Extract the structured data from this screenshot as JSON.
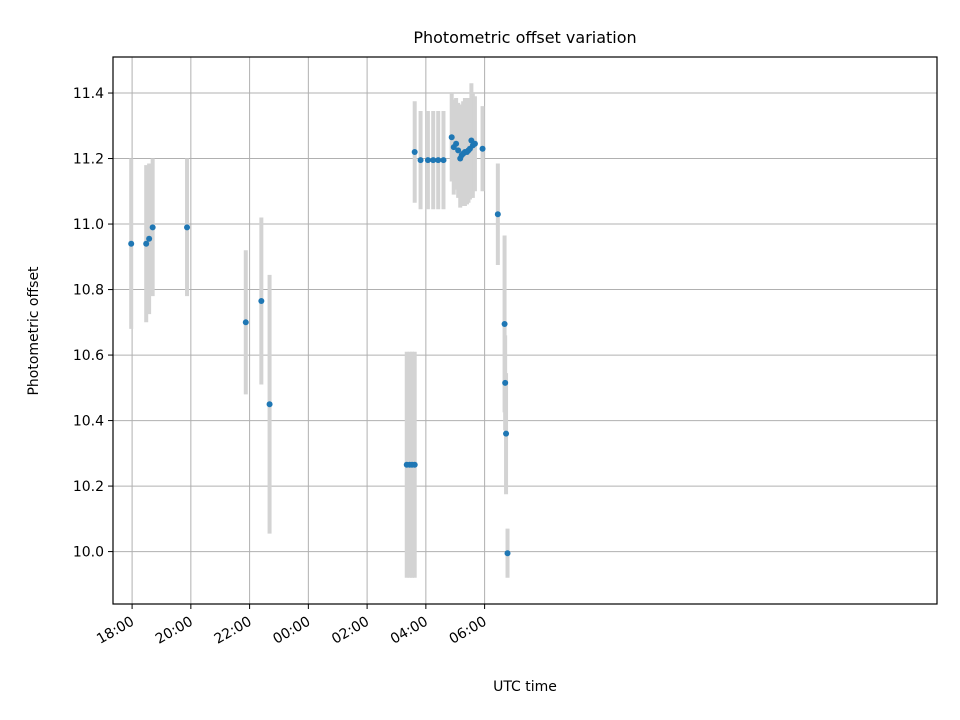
{
  "chart_data": {
    "type": "scatter",
    "title": "Photometric offset variation",
    "xlabel": "UTC time",
    "ylabel": "Photometric offset",
    "x_unit": "hours since 18:00 UTC (day 1)",
    "xlim": [
      -0.65,
      27.4
    ],
    "ylim": [
      9.84,
      11.51
    ],
    "grid": true,
    "x_ticks": [
      {
        "value": 0,
        "label": "18:00"
      },
      {
        "value": 2,
        "label": "20:00"
      },
      {
        "value": 4,
        "label": "22:00"
      },
      {
        "value": 6,
        "label": "00:00"
      },
      {
        "value": 8,
        "label": "02:00"
      },
      {
        "value": 10,
        "label": "04:00"
      },
      {
        "value": 12,
        "label": "06:00"
      }
    ],
    "y_ticks": [
      {
        "value": 10.0,
        "label": "10.0"
      },
      {
        "value": 10.2,
        "label": "10.2"
      },
      {
        "value": 10.4,
        "label": "10.4"
      },
      {
        "value": 10.6,
        "label": "10.6"
      },
      {
        "value": 10.8,
        "label": "10.8"
      },
      {
        "value": 11.0,
        "label": "11.0"
      },
      {
        "value": 11.2,
        "label": "11.2"
      },
      {
        "value": 11.4,
        "label": "11.4"
      }
    ],
    "colors": {
      "point": "#1f77b4",
      "errorbar": "#d3d3d3",
      "grid": "#b0b0b0"
    },
    "points": [
      {
        "x": -0.03,
        "y": 10.94,
        "err": 0.26
      },
      {
        "x": 0.48,
        "y": 10.94,
        "err": 0.24
      },
      {
        "x": 0.58,
        "y": 10.955,
        "err": 0.23
      },
      {
        "x": 0.7,
        "y": 10.99,
        "err": 0.21
      },
      {
        "x": 1.87,
        "y": 10.99,
        "err": 0.21
      },
      {
        "x": 3.87,
        "y": 10.7,
        "err": 0.22
      },
      {
        "x": 4.4,
        "y": 10.765,
        "err": 0.255
      },
      {
        "x": 4.68,
        "y": 10.45,
        "err": 0.395
      },
      {
        "x": 9.35,
        "y": 10.265,
        "err": 0.345
      },
      {
        "x": 9.45,
        "y": 10.265,
        "err": 0.345
      },
      {
        "x": 9.53,
        "y": 10.265,
        "err": 0.345
      },
      {
        "x": 9.62,
        "y": 10.265,
        "err": 0.345
      },
      {
        "x": 9.62,
        "y": 11.22,
        "err": 0.155
      },
      {
        "x": 9.82,
        "y": 11.195,
        "err": 0.15
      },
      {
        "x": 10.07,
        "y": 11.195,
        "err": 0.15
      },
      {
        "x": 10.25,
        "y": 11.195,
        "err": 0.15
      },
      {
        "x": 10.42,
        "y": 11.195,
        "err": 0.15
      },
      {
        "x": 10.6,
        "y": 11.195,
        "err": 0.15
      },
      {
        "x": 10.88,
        "y": 11.265,
        "err": 0.135
      },
      {
        "x": 10.95,
        "y": 11.235,
        "err": 0.145
      },
      {
        "x": 11.03,
        "y": 11.245,
        "err": 0.14
      },
      {
        "x": 11.1,
        "y": 11.225,
        "err": 0.145
      },
      {
        "x": 11.17,
        "y": 11.2,
        "err": 0.15
      },
      {
        "x": 11.22,
        "y": 11.21,
        "err": 0.155
      },
      {
        "x": 11.27,
        "y": 11.215,
        "err": 0.16
      },
      {
        "x": 11.33,
        "y": 11.22,
        "err": 0.165
      },
      {
        "x": 11.4,
        "y": 11.22,
        "err": 0.16
      },
      {
        "x": 11.45,
        "y": 11.225,
        "err": 0.16
      },
      {
        "x": 11.5,
        "y": 11.23,
        "err": 0.155
      },
      {
        "x": 11.55,
        "y": 11.255,
        "err": 0.175
      },
      {
        "x": 11.6,
        "y": 11.24,
        "err": 0.16
      },
      {
        "x": 11.67,
        "y": 11.245,
        "err": 0.145
      },
      {
        "x": 11.93,
        "y": 11.23,
        "err": 0.13
      },
      {
        "x": 12.45,
        "y": 11.03,
        "err": 0.155
      },
      {
        "x": 12.68,
        "y": 10.695,
        "err": 0.27
      },
      {
        "x": 12.7,
        "y": 10.515,
        "err": 0.145
      },
      {
        "x": 12.73,
        "y": 10.36,
        "err": 0.185
      },
      {
        "x": 12.78,
        "y": 9.995,
        "err": 0.075
      }
    ]
  }
}
